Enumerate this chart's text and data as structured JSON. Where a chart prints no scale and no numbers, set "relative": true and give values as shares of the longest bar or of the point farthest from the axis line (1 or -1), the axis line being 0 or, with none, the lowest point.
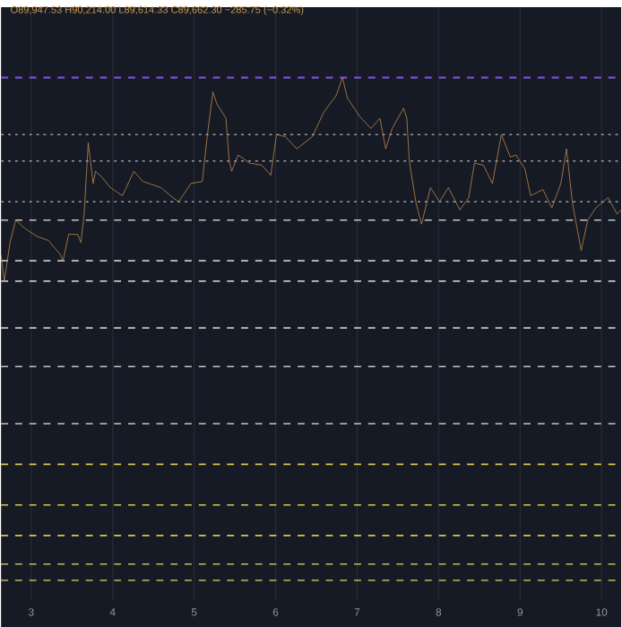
{
  "chart_data": {
    "type": "line",
    "title": "O89,947.53 H90,214.00 L89,614.33 C89,662.30 −285.75 (−0.32%)",
    "relative": true,
    "xlim": [
      2.63,
      10.24
    ],
    "xticks": [
      3,
      4,
      5,
      6,
      7,
      8,
      9,
      10
    ],
    "grid": "x",
    "marker": "none",
    "series": [
      {
        "color": "#c0894a",
        "x": [
          2.63,
          2.67,
          2.74,
          2.81,
          2.92,
          3.07,
          3.21,
          3.36,
          3.39,
          3.46,
          3.57,
          3.61,
          3.65,
          3.7,
          3.76,
          3.79,
          3.87,
          3.97,
          4.12,
          4.26,
          4.37,
          4.59,
          4.74,
          4.81,
          4.96,
          5.1,
          5.16,
          5.23,
          5.28,
          5.39,
          5.43,
          5.46,
          5.54,
          5.68,
          5.83,
          5.94,
          6.01,
          6.12,
          6.26,
          6.45,
          6.59,
          6.74,
          6.82,
          6.88,
          7.03,
          7.17,
          7.28,
          7.35,
          7.43,
          7.57,
          7.61,
          7.64,
          7.72,
          7.79,
          7.9,
          8.01,
          8.12,
          8.26,
          8.37,
          8.44,
          8.55,
          8.66,
          8.77,
          8.88,
          8.95,
          9.06,
          9.13,
          9.28,
          9.39,
          9.5,
          9.57,
          9.64,
          9.75,
          9.83,
          9.93,
          10.08,
          10.19,
          10.24
        ],
        "values": [
          0.13,
          0,
          0.19,
          0.3,
          0.26,
          0.22,
          0.2,
          0.13,
          0.1,
          0.23,
          0.23,
          0.19,
          0.33,
          0.68,
          0.48,
          0.54,
          0.51,
          0.46,
          0.42,
          0.54,
          0.49,
          0.46,
          0.41,
          0.39,
          0.48,
          0.49,
          0.71,
          0.93,
          0.87,
          0.8,
          0.59,
          0.54,
          0.62,
          0.58,
          0.57,
          0.52,
          0.72,
          0.71,
          0.65,
          0.71,
          0.83,
          0.91,
          1,
          0.9,
          0.81,
          0.75,
          0.8,
          0.65,
          0.75,
          0.85,
          0.8,
          0.59,
          0.39,
          0.28,
          0.46,
          0.39,
          0.46,
          0.35,
          0.41,
          0.58,
          0.57,
          0.48,
          0.72,
          0.61,
          0.62,
          0.55,
          0.42,
          0.45,
          0.36,
          0.48,
          0.65,
          0.39,
          0.15,
          0.3,
          0.36,
          0.41,
          0.33,
          0.35
        ]
      }
    ],
    "ref_lines": [
      {
        "axis": "y",
        "value": 1.0,
        "color": "#7a4fd8",
        "line_style": "dashed"
      },
      {
        "axis": "y",
        "value": 0.72,
        "color": "#9a9aa4",
        "line_style": "dotted"
      },
      {
        "axis": "y",
        "value": 0.59,
        "color": "#9a9aa4",
        "line_style": "dotted"
      },
      {
        "axis": "y",
        "value": 0.39,
        "color": "#9a9aa4",
        "line_style": "dotted"
      },
      {
        "axis": "y",
        "value": 0.3,
        "color": "#c4c4ca",
        "line_style": "dashed"
      },
      {
        "axis": "y",
        "value": 0.1,
        "color": "#c4c4ca",
        "line_style": "dashed"
      },
      {
        "axis": "y",
        "value": 0,
        "color": "#c4c4ca",
        "line_style": "dashed"
      },
      {
        "axis": "y",
        "value": -0.23,
        "color": "#c4c4ca",
        "line_style": "dashed"
      },
      {
        "axis": "y",
        "value": -0.42,
        "color": "#c4c4ca",
        "line_style": "dashed"
      },
      {
        "axis": "y",
        "value": -0.7,
        "color": "#c4c4ca",
        "line_style": "dashed"
      },
      {
        "axis": "y",
        "value": -0.9,
        "color": "#d8c84a",
        "line_style": "dashed"
      },
      {
        "axis": "y",
        "value": -1.1,
        "color": "#d8c84a",
        "line_style": "dashed"
      },
      {
        "axis": "y",
        "value": -1.25,
        "color": "#d8c84a",
        "line_style": "dashed"
      },
      {
        "axis": "y",
        "value": -1.39,
        "color": "#c8bc50",
        "line_style": "dashed"
      },
      {
        "axis": "y",
        "value": -1.47,
        "color": "#a8a058",
        "line_style": "dashed"
      }
    ]
  }
}
